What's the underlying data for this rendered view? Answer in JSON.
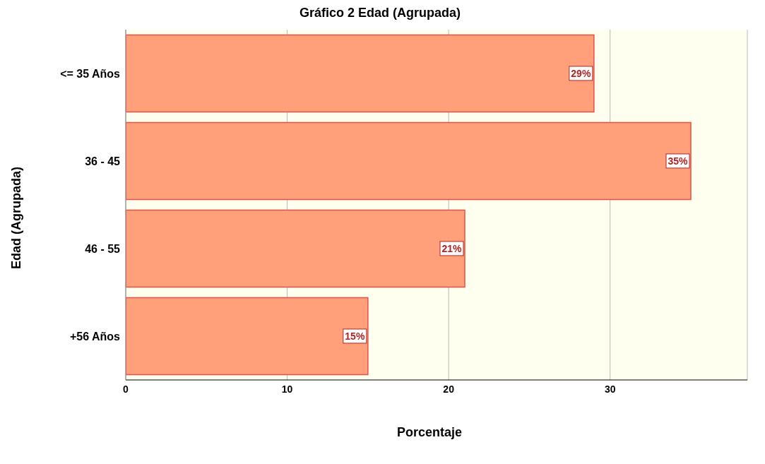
{
  "chart_data": {
    "type": "bar",
    "orientation": "horizontal",
    "title": "Gráfico 2 Edad (Agrupada)",
    "xlabel": "Porcentaje",
    "ylabel": "Edad (Agrupada)",
    "categories": [
      "<= 35 Años",
      "36 - 45",
      "46 - 55",
      "+56 Años"
    ],
    "values": [
      29,
      35,
      21,
      15
    ],
    "value_labels": [
      "29%",
      "35%",
      "21%",
      "15%"
    ],
    "color": "#ffa07a",
    "xlim": [
      0,
      38.5
    ],
    "xticks": [
      0,
      10,
      20,
      30
    ],
    "grid": "x"
  }
}
